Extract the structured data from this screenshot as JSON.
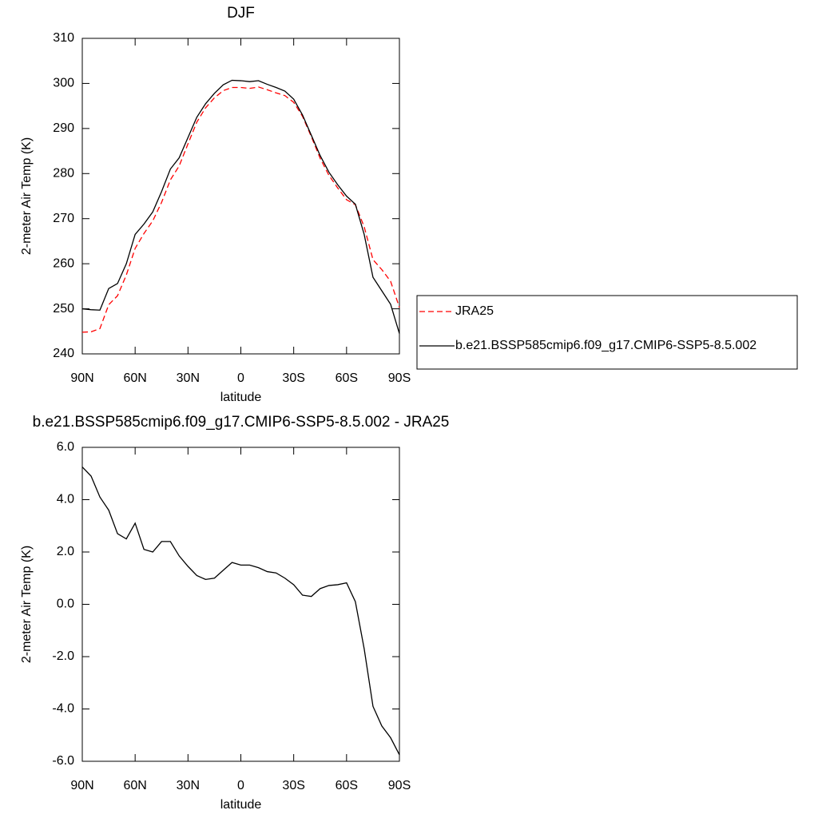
{
  "chart_data": [
    {
      "type": "line",
      "title": "DJF",
      "xlabel": "latitude",
      "ylabel": "2-meter Air Temp (K)",
      "x": [
        90,
        85,
        80,
        75,
        70,
        65,
        60,
        55,
        50,
        45,
        40,
        35,
        30,
        25,
        20,
        15,
        10,
        5,
        0,
        -5,
        -10,
        -15,
        -20,
        -25,
        -30,
        -35,
        -40,
        -45,
        -50,
        -55,
        -60,
        -65,
        -70,
        -75,
        -80,
        -85,
        -90
      ],
      "xlim": [
        90,
        -90
      ],
      "xticks": [
        {
          "value": 90,
          "label": "90N"
        },
        {
          "value": 60,
          "label": "60N"
        },
        {
          "value": 30,
          "label": "30N"
        },
        0,
        {
          "value": -30,
          "label": "30S"
        },
        {
          "value": -60,
          "label": "60S"
        },
        {
          "value": -90,
          "label": "90S"
        }
      ],
      "ylim": [
        240,
        310
      ],
      "yticks": [
        240,
        250,
        260,
        270,
        280,
        290,
        300,
        310
      ],
      "legend": "right",
      "series": [
        {
          "name": "JRA25",
          "color": "#ff0000",
          "line_style": "dashed",
          "values": [
            244.8,
            244.9,
            245.6,
            250.9,
            252.9,
            257.5,
            263.4,
            266.7,
            269.5,
            273.6,
            278.6,
            281.7,
            286.6,
            291.4,
            294.6,
            296.8,
            298.4,
            299.1,
            299.1,
            298.9,
            299.2,
            298.6,
            297.9,
            297.3,
            295.8,
            292.7,
            288.2,
            283.4,
            279.6,
            276.8,
            274.2,
            273.1,
            268.2,
            260.9,
            258.7,
            256.1,
            250.3
          ]
        },
        {
          "name": "b.e21.BSSP585cmip6.f09_g17.CMIP6-SSP5-8.5.002",
          "color": "#000000",
          "line_style": "solid",
          "values": [
            250.0,
            249.8,
            249.7,
            254.5,
            255.6,
            260.0,
            266.5,
            268.8,
            271.5,
            276.0,
            281.0,
            283.5,
            288.0,
            292.5,
            295.5,
            297.8,
            299.7,
            300.7,
            300.6,
            300.4,
            300.6,
            299.8,
            299.1,
            298.3,
            296.5,
            293.0,
            288.5,
            284.0,
            280.3,
            277.5,
            275.0,
            273.2,
            266.5,
            257.0,
            254.0,
            251.0,
            244.5
          ]
        }
      ]
    },
    {
      "type": "line",
      "title": "b.e21.BSSP585cmip6.f09_g17.CMIP6-SSP5-8.5.002 - JRA25",
      "xlabel": "latitude",
      "ylabel": "2-meter Air Temp (K)",
      "x": [
        90,
        85,
        80,
        75,
        70,
        65,
        60,
        55,
        50,
        45,
        40,
        35,
        30,
        25,
        20,
        15,
        10,
        5,
        0,
        -5,
        -10,
        -15,
        -20,
        -25,
        -30,
        -35,
        -40,
        -45,
        -50,
        -55,
        -60,
        -65,
        -70,
        -75,
        -80,
        -85,
        -90
      ],
      "xlim": [
        90,
        -90
      ],
      "xticks": [
        {
          "value": 90,
          "label": "90N"
        },
        {
          "value": 60,
          "label": "60N"
        },
        {
          "value": 30,
          "label": "30N"
        },
        0,
        {
          "value": -30,
          "label": "30S"
        },
        {
          "value": -60,
          "label": "60S"
        },
        {
          "value": -90,
          "label": "90S"
        }
      ],
      "ylim": [
        -6,
        6
      ],
      "yticks": [
        {
          "value": -6,
          "label": "-6.0"
        },
        {
          "value": -4,
          "label": "-4.0"
        },
        {
          "value": -2,
          "label": "-2.0"
        },
        {
          "value": 0,
          "label": "0.0"
        },
        {
          "value": 2,
          "label": "2.0"
        },
        {
          "value": 4,
          "label": "4.0"
        },
        {
          "value": 6,
          "label": "6.0"
        }
      ],
      "series": [
        {
          "color": "#000000",
          "line_style": "solid",
          "values": [
            5.25,
            4.9,
            4.1,
            3.6,
            2.7,
            2.5,
            3.1,
            2.1,
            2.0,
            2.4,
            2.4,
            1.85,
            1.45,
            1.1,
            0.95,
            1.0,
            1.3,
            1.6,
            1.5,
            1.5,
            1.4,
            1.25,
            1.2,
            1.0,
            0.75,
            0.35,
            0.3,
            0.6,
            0.72,
            0.75,
            0.82,
            0.1,
            -1.7,
            -3.9,
            -4.65,
            -5.1,
            -5.75
          ]
        }
      ]
    }
  ]
}
